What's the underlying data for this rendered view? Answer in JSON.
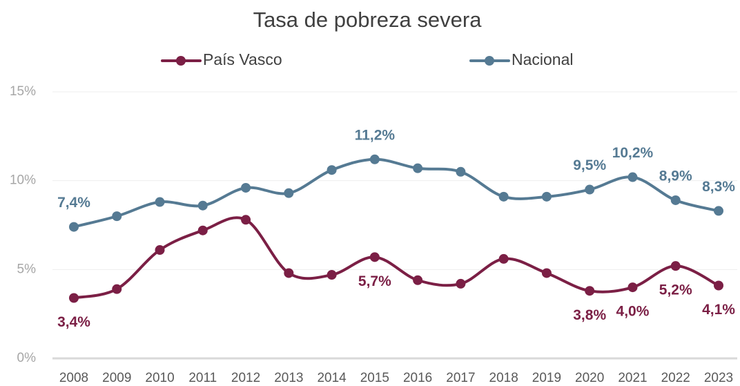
{
  "chart_data": {
    "type": "line",
    "title": "Tasa de pobreza severa",
    "categories": [
      "2008",
      "2009",
      "2010",
      "2011",
      "2012",
      "2013",
      "2014",
      "2015",
      "2016",
      "2017",
      "2018",
      "2019",
      "2020",
      "2021",
      "2022",
      "2023"
    ],
    "ylim": [
      0,
      15
    ],
    "yticks": [
      {
        "value": 0,
        "label": "0%"
      },
      {
        "value": 5,
        "label": "5%"
      },
      {
        "value": 10,
        "label": "10%"
      },
      {
        "value": 15,
        "label": "15%"
      }
    ],
    "grid": true,
    "smooth": true,
    "series": [
      {
        "name": "País Vasco",
        "color": "#7b1f45",
        "label_side": "below",
        "values": [
          3.4,
          3.9,
          6.1,
          7.2,
          7.8,
          4.8,
          4.7,
          5.7,
          4.4,
          4.2,
          5.6,
          4.8,
          3.8,
          4.0,
          5.2,
          4.1
        ],
        "value_labels": [
          "3,4%",
          null,
          null,
          null,
          null,
          null,
          null,
          "5,7%",
          null,
          null,
          null,
          null,
          "3,8%",
          "4,0%",
          "5,2%",
          "4,1%"
        ]
      },
      {
        "name": "Nacional",
        "color": "#557a93",
        "label_side": "above",
        "values": [
          7.4,
          8.0,
          8.8,
          8.6,
          9.6,
          9.3,
          10.6,
          11.2,
          10.7,
          10.5,
          9.1,
          9.1,
          9.5,
          10.2,
          8.9,
          8.3
        ],
        "value_labels": [
          "7,4%",
          null,
          null,
          null,
          null,
          null,
          null,
          "11,2%",
          null,
          null,
          null,
          null,
          "9,5%",
          "10,2%",
          "8,9%",
          "8,3%"
        ]
      }
    ]
  }
}
